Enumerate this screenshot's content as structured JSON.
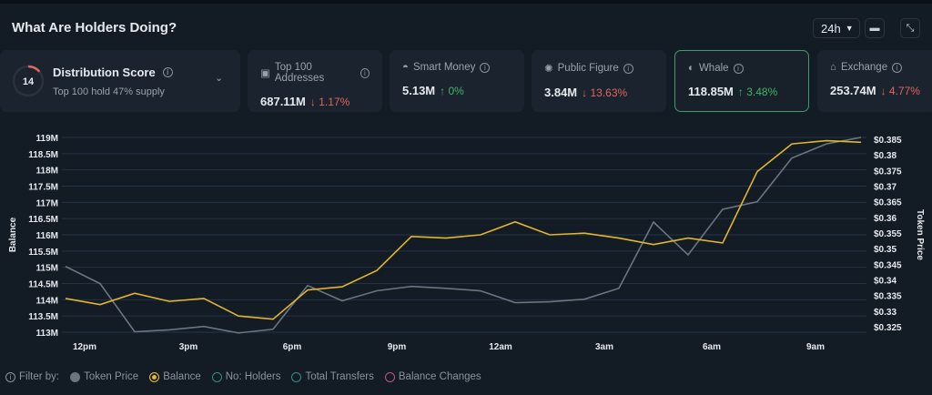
{
  "header": {
    "title": "What Are Holders Doing?",
    "range": "24h"
  },
  "distribution": {
    "title": "Distribution Score",
    "score": "14",
    "subtitle": "Top 100 hold 47% supply",
    "score_fraction": 0.14
  },
  "cards": [
    {
      "label": "Top 100 Addresses",
      "icon": "wallet-icon",
      "value": "687.11M",
      "change": "↓ 1.17%",
      "dir": "down"
    },
    {
      "label": "Smart Money",
      "icon": "glasses-icon",
      "value": "5.13M",
      "change": "↑ 0%",
      "dir": "up"
    },
    {
      "label": "Public Figure",
      "icon": "megaphone-icon",
      "value": "3.84M",
      "change": "↓ 13.63%",
      "dir": "down"
    },
    {
      "label": "Whale",
      "icon": "whale-icon",
      "value": "118.85M",
      "change": "↑ 3.48%",
      "dir": "up",
      "selected": true
    },
    {
      "label": "Exchange",
      "icon": "bank-icon",
      "value": "253.74M",
      "change": "↓ 4.77%",
      "dir": "down"
    }
  ],
  "chart_data": {
    "type": "line",
    "ylabel": "Balance",
    "y2label": "Token Price",
    "ylim": [
      113,
      119
    ],
    "y2lim": [
      0.325,
      0.385
    ],
    "yticks": [
      "113M",
      "113.5M",
      "114M",
      "114.5M",
      "115M",
      "115.5M",
      "116M",
      "116.5M",
      "117M",
      "117.5M",
      "118M",
      "118.5M",
      "119M"
    ],
    "y2ticks": [
      "$0.325",
      "$0.33",
      "$0.335",
      "$0.34",
      "$0.345",
      "$0.35",
      "$0.355",
      "$0.36",
      "$0.365",
      "$0.37",
      "$0.375",
      "$0.38",
      "$0.385"
    ],
    "xticks": [
      "12pm",
      "3pm",
      "6pm",
      "9pm",
      "12am",
      "3am",
      "6am",
      "9am"
    ],
    "grid": true,
    "series": [
      {
        "name": "Balance",
        "color": "#e3b62d",
        "values": [
          114.04,
          113.85,
          114.2,
          113.95,
          114.04,
          113.5,
          113.4,
          114.3,
          114.4,
          114.9,
          115.95,
          115.9,
          116.0,
          116.4,
          116.0,
          116.05,
          115.9,
          115.7,
          115.9,
          115.75,
          117.95,
          118.8,
          118.9,
          118.85
        ]
      },
      {
        "name": "Token Price",
        "color": "#6b7580",
        "axis": "right",
        "values": [
          0.3443,
          0.3388,
          0.3234,
          0.324,
          0.3251,
          0.323,
          0.3242,
          0.3382,
          0.3333,
          0.3365,
          0.3379,
          0.3373,
          0.3365,
          0.3327,
          0.333,
          0.3338,
          0.3373,
          0.3585,
          0.348,
          0.3626,
          0.365,
          0.379,
          0.3835,
          0.3856
        ]
      }
    ]
  },
  "legend": {
    "label": "Filter by:",
    "items": [
      {
        "label": "Token Price",
        "color": "#6b7580",
        "state": "filled"
      },
      {
        "label": "Balance",
        "color": "#e3b62d",
        "state": "selected"
      },
      {
        "label": "No: Holders",
        "color": "#2f8f86",
        "state": "off"
      },
      {
        "label": "Total Transfers",
        "color": "#2f8f86",
        "state": "off"
      },
      {
        "label": "Balance Changes",
        "color": "#c0577f",
        "state": "off"
      }
    ]
  }
}
